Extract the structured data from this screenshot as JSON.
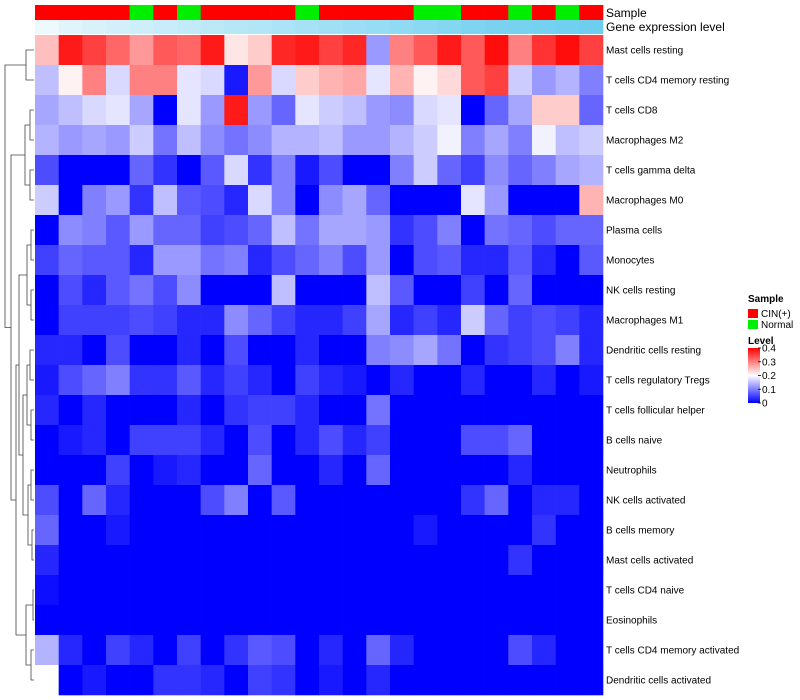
{
  "chart_data": {
    "type": "heatmap",
    "title": "",
    "annotation_tracks": {
      "sample_label": "Sample",
      "level_label": "Gene expression level"
    },
    "sample_groups": [
      "CIN(+)",
      "CIN(+)",
      "CIN(+)",
      "CIN(+)",
      "Normal",
      "CIN(+)",
      "Normal",
      "CIN(+)",
      "CIN(+)",
      "CIN(+)",
      "CIN(+)",
      "Normal",
      "CIN(+)",
      "CIN(+)",
      "CIN(+)",
      "CIN(+)",
      "Normal",
      "Normal",
      "CIN(+)",
      "CIN(+)",
      "Normal",
      "CIN(+)",
      "Normal",
      "CIN(+)"
    ],
    "expression_level": [
      0.03,
      0.12,
      0.18,
      0.22,
      0.26,
      0.3,
      0.34,
      0.38,
      0.42,
      0.46,
      0.5,
      0.54,
      0.58,
      0.62,
      0.66,
      0.7,
      0.74,
      0.78,
      0.82,
      0.86,
      0.88,
      0.9,
      0.92,
      0.95
    ],
    "rows": [
      "Mast cells resting",
      "T cells CD4 memory resting",
      "T cells CD8",
      "Macrophages M2",
      "T cells gamma delta",
      "Macrophages M0",
      "Plasma cells",
      "Monocytes",
      "NK cells resting",
      "Macrophages M1",
      "Dendritic cells resting",
      "T cells regulatory  Tregs",
      "T cells follicular helper",
      "B cells naive",
      "Neutrophils",
      "NK cells activated",
      "B cells memory",
      "Mast cells activated",
      "T cells CD4 naive",
      "Eosinophils",
      "T cells CD4 memory activated",
      "Dendritic cells activated"
    ],
    "values": [
      [
        0.25,
        0.38,
        0.35,
        0.32,
        0.28,
        0.33,
        0.32,
        0.38,
        0.22,
        0.24,
        0.37,
        0.38,
        0.35,
        0.37,
        0.12,
        0.3,
        0.33,
        0.38,
        0.33,
        0.39,
        0.3,
        0.36,
        0.39,
        0.35
      ],
      [
        0.15,
        0.21,
        0.3,
        0.17,
        0.3,
        0.3,
        0.18,
        0.17,
        0.02,
        0.28,
        0.17,
        0.24,
        0.26,
        0.27,
        0.18,
        0.26,
        0.21,
        0.23,
        0.33,
        0.35,
        0.16,
        0.12,
        0.14,
        0.1
      ],
      [
        0.13,
        0.15,
        0.17,
        0.18,
        0.13,
        0.0,
        0.18,
        0.12,
        0.38,
        0.12,
        0.08,
        0.18,
        0.16,
        0.15,
        0.12,
        0.11,
        0.17,
        0.18,
        0.0,
        0.08,
        0.13,
        0.24,
        0.24,
        0.08
      ],
      [
        0.14,
        0.12,
        0.13,
        0.12,
        0.16,
        0.09,
        0.15,
        0.11,
        0.09,
        0.11,
        0.14,
        0.14,
        0.15,
        0.12,
        0.12,
        0.14,
        0.16,
        0.19,
        0.1,
        0.13,
        0.1,
        0.19,
        0.15,
        0.16
      ],
      [
        0.06,
        0.0,
        0.0,
        0.0,
        0.08,
        0.04,
        0.0,
        0.07,
        0.17,
        0.04,
        0.1,
        0.02,
        0.06,
        0.0,
        0.0,
        0.1,
        0.16,
        0.08,
        0.05,
        0.11,
        0.08,
        0.1,
        0.13,
        0.14
      ],
      [
        0.16,
        0.0,
        0.1,
        0.12,
        0.04,
        0.15,
        0.07,
        0.06,
        0.03,
        0.17,
        0.1,
        0.0,
        0.11,
        0.13,
        0.08,
        0.0,
        0.0,
        0.0,
        0.18,
        0.12,
        0.0,
        0.0,
        0.0,
        0.26
      ],
      [
        0.0,
        0.11,
        0.1,
        0.07,
        0.12,
        0.08,
        0.08,
        0.05,
        0.06,
        0.08,
        0.15,
        0.09,
        0.13,
        0.13,
        0.12,
        0.04,
        0.06,
        0.1,
        0.0,
        0.09,
        0.08,
        0.06,
        0.08,
        0.08
      ],
      [
        0.05,
        0.08,
        0.07,
        0.07,
        0.03,
        0.12,
        0.12,
        0.09,
        0.1,
        0.03,
        0.06,
        0.08,
        0.1,
        0.06,
        0.12,
        0.0,
        0.06,
        0.07,
        0.03,
        0.03,
        0.07,
        0.03,
        0.0,
        0.07
      ],
      [
        0.0,
        0.06,
        0.03,
        0.07,
        0.09,
        0.06,
        0.11,
        0.0,
        0.0,
        0.0,
        0.15,
        0.0,
        0.0,
        0.0,
        0.15,
        0.07,
        0.0,
        0.0,
        0.05,
        0.0,
        0.08,
        0.0,
        0.0,
        0.0
      ],
      [
        0.0,
        0.05,
        0.05,
        0.05,
        0.06,
        0.05,
        0.03,
        0.03,
        0.11,
        0.08,
        0.05,
        0.03,
        0.03,
        0.05,
        0.13,
        0.03,
        0.05,
        0.03,
        0.16,
        0.08,
        0.05,
        0.06,
        0.05,
        0.03
      ],
      [
        0.03,
        0.03,
        0.0,
        0.06,
        0.0,
        0.0,
        0.03,
        0.0,
        0.06,
        0.0,
        0.0,
        0.03,
        0.0,
        0.0,
        0.1,
        0.11,
        0.13,
        0.09,
        0.0,
        0.04,
        0.05,
        0.06,
        0.1,
        0.03
      ],
      [
        0.02,
        0.06,
        0.08,
        0.1,
        0.04,
        0.04,
        0.07,
        0.03,
        0.05,
        0.03,
        0.0,
        0.05,
        0.03,
        0.02,
        0.0,
        0.03,
        0.0,
        0.0,
        0.03,
        0.0,
        0.0,
        0.03,
        0.0,
        0.02
      ],
      [
        0.03,
        0.0,
        0.03,
        0.0,
        0.0,
        0.0,
        0.03,
        0.0,
        0.04,
        0.05,
        0.05,
        0.03,
        0.0,
        0.0,
        0.09,
        0.0,
        0.0,
        0.0,
        0.0,
        0.0,
        0.0,
        0.0,
        0.0,
        0.0
      ],
      [
        0.0,
        0.02,
        0.03,
        0.0,
        0.05,
        0.05,
        0.05,
        0.03,
        0.0,
        0.06,
        0.0,
        0.03,
        0.06,
        0.03,
        0.05,
        0.0,
        0.0,
        0.0,
        0.06,
        0.06,
        0.08,
        0.0,
        0.0,
        0.0
      ],
      [
        0.0,
        0.0,
        0.0,
        0.05,
        0.0,
        0.02,
        0.03,
        0.0,
        0.0,
        0.08,
        0.0,
        0.0,
        0.03,
        0.0,
        0.08,
        0.0,
        0.0,
        0.0,
        0.0,
        0.0,
        0.03,
        0.0,
        0.0,
        0.0
      ],
      [
        0.06,
        0.0,
        0.08,
        0.03,
        0.0,
        0.0,
        0.0,
        0.06,
        0.1,
        0.0,
        0.07,
        0.0,
        0.0,
        0.0,
        0.0,
        0.0,
        0.0,
        0.0,
        0.04,
        0.08,
        0.0,
        0.03,
        0.03,
        0.0
      ],
      [
        0.08,
        0.0,
        0.0,
        0.02,
        0.0,
        0.0,
        0.0,
        0.0,
        0.0,
        0.0,
        0.0,
        0.0,
        0.0,
        0.0,
        0.0,
        0.0,
        0.02,
        0.0,
        0.0,
        0.0,
        0.0,
        0.04,
        0.0,
        0.0
      ],
      [
        0.03,
        0.0,
        0.0,
        0.0,
        0.0,
        0.0,
        0.0,
        0.0,
        0.0,
        0.0,
        0.0,
        0.0,
        0.0,
        0.0,
        0.0,
        0.0,
        0.0,
        0.0,
        0.0,
        0.0,
        0.04,
        0.0,
        0.0,
        0.0
      ],
      [
        0.01,
        0.0,
        0.0,
        0.0,
        0.0,
        0.0,
        0.0,
        0.0,
        0.0,
        0.0,
        0.0,
        0.0,
        0.0,
        0.0,
        0.0,
        0.0,
        0.0,
        0.0,
        0.0,
        0.0,
        0.0,
        0.0,
        0.0,
        0.0
      ],
      [
        0.0,
        0.0,
        0.0,
        0.0,
        0.0,
        0.0,
        0.0,
        0.0,
        0.0,
        0.0,
        0.0,
        0.0,
        0.0,
        0.0,
        0.0,
        0.0,
        0.0,
        0.0,
        0.0,
        0.0,
        0.0,
        0.0,
        0.0,
        0.0
      ],
      [
        0.14,
        0.03,
        0.0,
        0.05,
        0.03,
        0.0,
        0.05,
        0.0,
        0.04,
        0.07,
        0.06,
        0.0,
        0.03,
        0.0,
        0.08,
        0.03,
        0.0,
        0.0,
        0.0,
        0.0,
        0.06,
        0.03,
        0.0,
        0.0
      ],
      [
        0.2,
        0.0,
        0.02,
        0.0,
        0.0,
        0.04,
        0.04,
        0.03,
        0.0,
        0.05,
        0.04,
        0.0,
        0.02,
        0.0,
        0.03,
        0.0,
        0.0,
        0.0,
        0.0,
        0.0,
        0.0,
        0.0,
        0.0,
        0.0
      ]
    ],
    "legend": {
      "sample_title": "Sample",
      "sample_items": [
        {
          "label": "CIN(+)",
          "color": "#FF0000"
        },
        {
          "label": "Normal",
          "color": "#00EE00"
        }
      ],
      "level_title": "Level",
      "level_ticks": [
        {
          "value": 0.4,
          "label": "0.4"
        },
        {
          "value": 0.3,
          "label": "0.3"
        },
        {
          "value": 0.2,
          "label": "0.2"
        },
        {
          "value": 0.1,
          "label": "0.1"
        },
        {
          "value": 0,
          "label": "0"
        }
      ]
    },
    "color_scale": {
      "low": "#0000FF",
      "mid": "#FFFFFF",
      "high": "#FF0000",
      "min": 0,
      "mid_value": 0.2,
      "max": 0.4
    },
    "level_track_colors": {
      "low": "#F2FAFD",
      "high": "#66CCEE"
    }
  }
}
